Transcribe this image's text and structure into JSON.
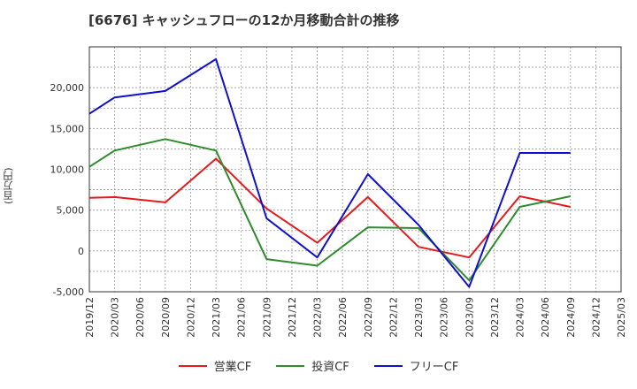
{
  "chart_data": {
    "type": "line",
    "title": "[6676]  キャッシュフローの12か月移動合計の推移",
    "ylabel": "(百万円)",
    "xlabel": "",
    "ylim": [
      -5000,
      25000
    ],
    "yticks": [
      -5000,
      0,
      5000,
      10000,
      15000,
      20000
    ],
    "ytick_labels": [
      "-5,000",
      "0",
      "5,000",
      "10,000",
      "15,000",
      "20,000"
    ],
    "categories": [
      "2019/12",
      "2020/03",
      "2020/06",
      "2020/09",
      "2020/12",
      "2021/03",
      "2021/06",
      "2021/09",
      "2021/12",
      "2022/03",
      "2022/06",
      "2022/09",
      "2022/12",
      "2023/03",
      "2023/06",
      "2023/09",
      "2023/12",
      "2024/03",
      "2024/06",
      "2024/09",
      "2024/12",
      "2025/03"
    ],
    "series": [
      {
        "name": "営業CF",
        "color": "#e41a1c",
        "points": [
          {
            "x": "2019/12",
            "y": 6500
          },
          {
            "x": "2020/03",
            "y": 6600
          },
          {
            "x": "2020/09",
            "y": 5950
          },
          {
            "x": "2021/03",
            "y": 11300
          },
          {
            "x": "2021/09",
            "y": 5200
          },
          {
            "x": "2022/03",
            "y": 1000
          },
          {
            "x": "2022/09",
            "y": 6600
          },
          {
            "x": "2023/03",
            "y": 500
          },
          {
            "x": "2023/09",
            "y": -800
          },
          {
            "x": "2024/03",
            "y": 6700
          },
          {
            "x": "2024/09",
            "y": 5400
          }
        ]
      },
      {
        "name": "投資CF",
        "color": "#2e8b2e",
        "points": [
          {
            "x": "2019/12",
            "y": 10300
          },
          {
            "x": "2020/03",
            "y": 12300
          },
          {
            "x": "2020/09",
            "y": 13700
          },
          {
            "x": "2021/03",
            "y": 12300
          },
          {
            "x": "2021/09",
            "y": -1000
          },
          {
            "x": "2022/03",
            "y": -1800
          },
          {
            "x": "2022/09",
            "y": 2900
          },
          {
            "x": "2023/03",
            "y": 2800
          },
          {
            "x": "2023/09",
            "y": -3600
          },
          {
            "x": "2024/03",
            "y": 5400
          },
          {
            "x": "2024/09",
            "y": 6700
          }
        ]
      },
      {
        "name": "フリーCF",
        "color": "#1010cc",
        "points": [
          {
            "x": "2019/12",
            "y": 16800
          },
          {
            "x": "2020/03",
            "y": 18800
          },
          {
            "x": "2020/09",
            "y": 19600
          },
          {
            "x": "2021/03",
            "y": 23500
          },
          {
            "x": "2021/09",
            "y": 4000
          },
          {
            "x": "2022/03",
            "y": -800
          },
          {
            "x": "2022/09",
            "y": 9400
          },
          {
            "x": "2023/03",
            "y": 3200
          },
          {
            "x": "2023/09",
            "y": -4400
          },
          {
            "x": "2024/03",
            "y": 12000
          },
          {
            "x": "2024/09",
            "y": 12000
          }
        ]
      }
    ]
  }
}
